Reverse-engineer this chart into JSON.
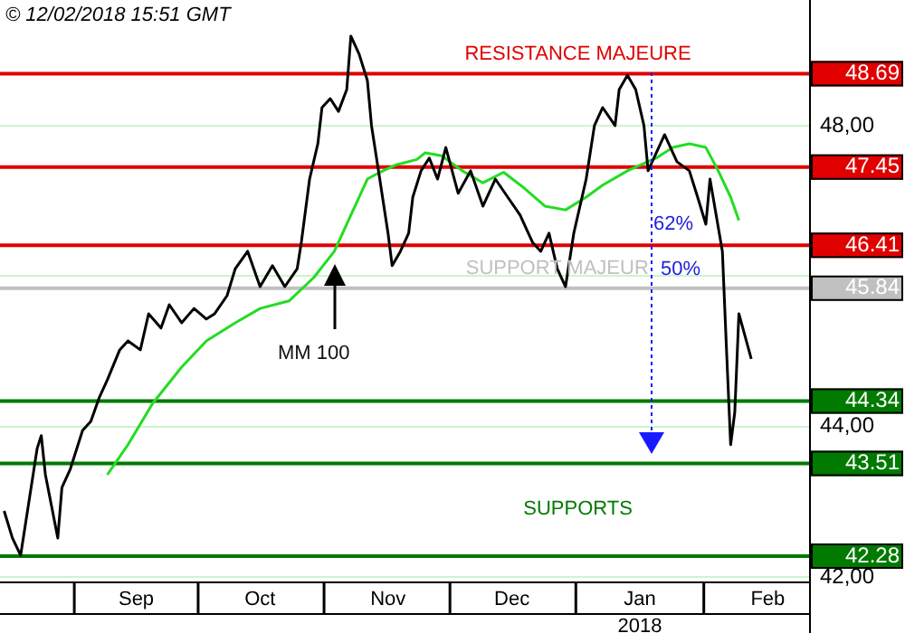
{
  "chart_data": {
    "type": "line",
    "subtitle": "© 12/02/2018 15:51 GMT",
    "xlim": [
      "2017-08-14",
      "2018-02-26"
    ],
    "xticks": [
      {
        "value": "2017-09-16",
        "label": "Sep"
      },
      {
        "value": "2017-10-16",
        "label": "Oct"
      },
      {
        "value": "2017-11-16",
        "label": "Nov"
      },
      {
        "value": "2017-12-16",
        "label": "Dec"
      },
      {
        "value": "2018-01-16",
        "label": "Jan\n2018"
      },
      {
        "value": "2018-02-16",
        "label": "Feb"
      }
    ],
    "ylim": [
      41.93,
      49.67
    ],
    "yticks": [
      {
        "value": 42,
        "label": "42,00"
      },
      {
        "value": 44,
        "label": "44,00"
      },
      {
        "value": 46,
        "label": null
      },
      {
        "value": 48,
        "label": "48,00"
      }
    ],
    "grid": "y",
    "legend": false,
    "series": [
      {
        "color": "#000000",
        "x": [
          "2017-08-15",
          "2017-08-17",
          "2017-08-19",
          "2017-08-21",
          "2017-08-23",
          "2017-08-24",
          "2017-08-25",
          "2017-08-28",
          "2017-08-29",
          "2017-08-31",
          "2017-09-03",
          "2017-09-05",
          "2017-09-07",
          "2017-09-09",
          "2017-09-12",
          "2017-09-14",
          "2017-09-17",
          "2017-09-19",
          "2017-09-22",
          "2017-09-24",
          "2017-09-27",
          "2017-09-30",
          "2017-10-03",
          "2017-10-05",
          "2017-10-08",
          "2017-10-10",
          "2017-10-13",
          "2017-10-16",
          "2017-10-19",
          "2017-10-22",
          "2017-10-25",
          "2017-10-26",
          "2017-10-28",
          "2017-10-30",
          "2017-10-31",
          "2017-11-02",
          "2017-11-04",
          "2017-11-06",
          "2017-11-07",
          "2017-11-09",
          "2017-11-11",
          "2017-11-12",
          "2017-11-14",
          "2017-11-16",
          "2017-11-17",
          "2017-11-19",
          "2017-11-21",
          "2017-11-22",
          "2017-11-24",
          "2017-11-26",
          "2017-11-28",
          "2017-11-30",
          "2017-12-03",
          "2017-12-06",
          "2017-12-09",
          "2017-12-12",
          "2017-12-15",
          "2017-12-18",
          "2017-12-21",
          "2017-12-23",
          "2017-12-25",
          "2017-12-27",
          "2017-12-29",
          "2017-12-31",
          "2018-01-03",
          "2018-01-05",
          "2018-01-07",
          "2018-01-10",
          "2018-01-11",
          "2018-01-13",
          "2018-01-15",
          "2018-01-17",
          "2018-01-18",
          "2018-01-20",
          "2018-01-22",
          "2018-01-23",
          "2018-01-25",
          "2018-01-28",
          "2018-01-30",
          "2018-02-01",
          "2018-02-02",
          "2018-02-05",
          "2018-02-06",
          "2018-02-07",
          "2018-02-08",
          "2018-02-09",
          "2018-02-12"
        ],
        "values": [
          42.88,
          42.52,
          42.29,
          43.0,
          43.71,
          43.88,
          43.36,
          42.52,
          43.19,
          43.43,
          43.95,
          44.07,
          44.38,
          44.62,
          45.02,
          45.14,
          45.02,
          45.5,
          45.31,
          45.62,
          45.38,
          45.57,
          45.43,
          45.5,
          45.74,
          46.1,
          46.33,
          45.86,
          46.14,
          45.86,
          46.1,
          46.45,
          47.29,
          47.76,
          48.24,
          48.36,
          48.19,
          48.48,
          49.19,
          48.95,
          48.6,
          48.0,
          47.29,
          46.57,
          46.14,
          46.33,
          46.57,
          47.05,
          47.4,
          47.57,
          47.29,
          47.71,
          47.1,
          47.4,
          46.93,
          47.29,
          47.05,
          46.81,
          46.45,
          46.33,
          46.57,
          46.1,
          45.86,
          46.57,
          47.29,
          48.0,
          48.24,
          48.0,
          48.48,
          48.67,
          48.48,
          48.0,
          47.4,
          47.64,
          47.88,
          47.76,
          47.52,
          47.4,
          47.05,
          46.69,
          47.29,
          46.33,
          45.02,
          43.76,
          44.19,
          45.5,
          44.9
        ]
      },
      {
        "name": "MM 100",
        "color": "#22dd22",
        "x": [
          "2017-09-09",
          "2017-09-14",
          "2017-09-20",
          "2017-09-27",
          "2017-10-03",
          "2017-10-10",
          "2017-10-16",
          "2017-10-23",
          "2017-10-29",
          "2017-11-03",
          "2017-11-07",
          "2017-11-11",
          "2017-11-14",
          "2017-11-18",
          "2017-11-23",
          "2017-11-25",
          "2017-11-29",
          "2017-12-04",
          "2017-12-09",
          "2017-12-14",
          "2017-12-19",
          "2017-12-24",
          "2017-12-29",
          "2018-01-03",
          "2018-01-07",
          "2018-01-13",
          "2018-01-20",
          "2018-01-24",
          "2018-01-28",
          "2018-02-01",
          "2018-02-04",
          "2018-02-07",
          "2018-02-09"
        ],
        "values": [
          43.36,
          43.76,
          44.31,
          44.79,
          45.14,
          45.38,
          45.57,
          45.67,
          45.98,
          46.33,
          46.81,
          47.29,
          47.38,
          47.48,
          47.55,
          47.64,
          47.6,
          47.4,
          47.24,
          47.38,
          47.17,
          46.93,
          46.88,
          47.05,
          47.21,
          47.4,
          47.57,
          47.71,
          47.76,
          47.71,
          47.4,
          47.05,
          46.74
        ]
      }
    ],
    "ref_lines": [
      {
        "axis": "y",
        "value": 48.69,
        "label": "48.69",
        "color": "#e00000"
      },
      {
        "axis": "y",
        "value": 47.45,
        "label": "47.45",
        "color": "#e00000"
      },
      {
        "axis": "y",
        "value": 46.41,
        "label": "46.41",
        "color": "#e00000"
      },
      {
        "axis": "y",
        "value": 45.84,
        "label": "45.84",
        "color": "#c0c0c0"
      },
      {
        "axis": "y",
        "value": 44.34,
        "label": "44.34",
        "color": "#007a00"
      },
      {
        "axis": "y",
        "value": 43.51,
        "label": "43.51",
        "color": "#007a00"
      },
      {
        "axis": "y",
        "value": 42.28,
        "label": "42.28",
        "color": "#007a00"
      }
    ],
    "annotations": [
      {
        "text": "RESISTANCE MAJEURE",
        "x": "2018-01-01",
        "y": 48.69
      },
      {
        "text": "SUPPORT MAJEUR",
        "x": "2017-12-27",
        "y": 45.84
      },
      {
        "text": "SUPPORTS",
        "x": "2018-01-01",
        "y": 43.51
      },
      "62%",
      "50%"
    ]
  }
}
